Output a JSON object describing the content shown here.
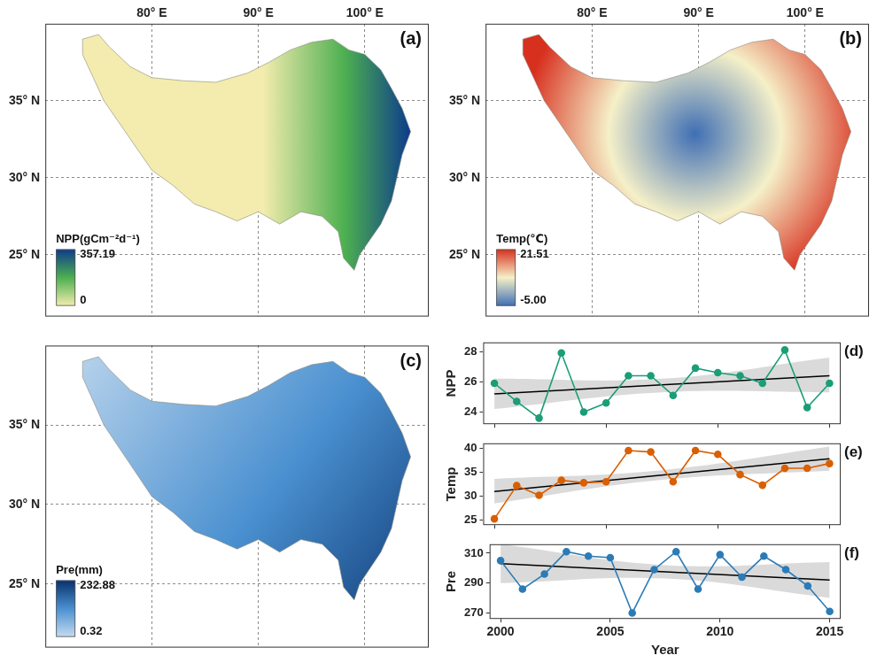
{
  "chart_data": [
    {
      "type": "map",
      "panel": "(a)",
      "xlim": [
        70,
        106
      ],
      "ylim": [
        21,
        40
      ],
      "xticks": [
        {
          "value": 80,
          "label": "80° E"
        },
        {
          "value": 90,
          "label": "90° E"
        },
        {
          "value": 100,
          "label": "100° E"
        }
      ],
      "yticks": [
        {
          "value": 25,
          "label": "25° N"
        },
        {
          "value": 30,
          "label": "30° N"
        },
        {
          "value": 35,
          "label": "35° N"
        }
      ],
      "grid": true,
      "boundary": {
        "x": [
          73.5,
          75,
          76,
          78,
          80,
          83,
          86,
          89,
          91,
          93,
          95,
          97,
          98.5,
          100,
          101.5,
          102.5,
          103.5,
          104.3,
          103.5,
          103,
          102.5,
          101.5,
          100.5,
          99.5,
          99,
          98,
          97.5,
          96,
          94,
          92,
          90,
          88,
          86,
          84,
          82,
          80,
          79,
          78,
          77,
          75.5,
          74.5,
          73.5,
          73.5
        ],
        "y": [
          39.0,
          39.3,
          38.5,
          37.2,
          36.5,
          36.3,
          36.2,
          36.8,
          37.5,
          38.3,
          38.8,
          39.0,
          38.3,
          38.0,
          37.0,
          35.8,
          34.5,
          33.0,
          31.5,
          30.0,
          28.5,
          27.0,
          26.0,
          25.0,
          24.0,
          24.8,
          26.5,
          27.5,
          27.8,
          27.0,
          27.8,
          27.2,
          27.8,
          28.3,
          29.5,
          30.5,
          31.5,
          32.5,
          33.5,
          35.0,
          36.5,
          38.0,
          39.0
        ]
      },
      "colorbar": {
        "title": "NPP(gCm⁻²d⁻¹)",
        "range": [
          0,
          357.19
        ],
        "ticks": [
          0,
          357.19
        ],
        "colors": [
          "#f3ecae",
          "#4caf50",
          "#0d3b8c"
        ]
      }
    },
    {
      "type": "map",
      "panel": "(b)",
      "xlim": [
        70,
        106
      ],
      "ylim": [
        21,
        40
      ],
      "xticks": [
        {
          "value": 80,
          "label": "80° E"
        },
        {
          "value": 90,
          "label": "90° E"
        },
        {
          "value": 100,
          "label": "100° E"
        }
      ],
      "yticks": [
        {
          "value": 25,
          "label": "25° N"
        },
        {
          "value": 30,
          "label": "30° N"
        },
        {
          "value": 35,
          "label": "35° N"
        }
      ],
      "grid": true,
      "boundary": {
        "x": [
          73.5,
          75,
          76,
          78,
          80,
          83,
          86,
          89,
          91,
          93,
          95,
          97,
          98.5,
          100,
          101.5,
          102.5,
          103.5,
          104.3,
          103.5,
          103,
          102.5,
          101.5,
          100.5,
          99.5,
          99,
          98,
          97.5,
          96,
          94,
          92,
          90,
          88,
          86,
          84,
          82,
          80,
          79,
          78,
          77,
          75.5,
          74.5,
          73.5,
          73.5
        ],
        "y": [
          39.0,
          39.3,
          38.5,
          37.2,
          36.5,
          36.3,
          36.2,
          36.8,
          37.5,
          38.3,
          38.8,
          39.0,
          38.3,
          38.0,
          37.0,
          35.8,
          34.5,
          33.0,
          31.5,
          30.0,
          28.5,
          27.0,
          26.0,
          25.0,
          24.0,
          24.8,
          26.5,
          27.5,
          27.8,
          27.0,
          27.8,
          27.2,
          27.8,
          28.3,
          29.5,
          30.5,
          31.5,
          32.5,
          33.5,
          35.0,
          36.5,
          38.0,
          39.0
        ]
      },
      "colorbar": {
        "title": "Temp(℃)",
        "range": [
          -5,
          21.51
        ],
        "ticks": [
          {
            "value": -5,
            "label": "-5.00"
          },
          21.51
        ],
        "colors": [
          "#3f6fb5",
          "#f5f0c8",
          "#d7301f"
        ]
      }
    },
    {
      "type": "map",
      "panel": "(c)",
      "xlim": [
        70,
        106
      ],
      "ylim": [
        21,
        40
      ],
      "xticks": [
        {
          "value": 80,
          "label": "80° E"
        },
        {
          "value": 90,
          "label": "90° E"
        },
        {
          "value": 100,
          "label": "100° E"
        }
      ],
      "yticks": [
        {
          "value": 25,
          "label": "25° N"
        },
        {
          "value": 30,
          "label": "30° N"
        },
        {
          "value": 35,
          "label": "35° N"
        }
      ],
      "grid": true,
      "tick_labels": "y",
      "boundary": {
        "x": [
          73.5,
          75,
          76,
          78,
          80,
          83,
          86,
          89,
          91,
          93,
          95,
          97,
          98.5,
          100,
          101.5,
          102.5,
          103.5,
          104.3,
          103.5,
          103,
          102.5,
          101.5,
          100.5,
          99.5,
          99,
          98,
          97.5,
          96,
          94,
          92,
          90,
          88,
          86,
          84,
          82,
          80,
          79,
          78,
          77,
          75.5,
          74.5,
          73.5,
          73.5
        ],
        "y": [
          39.0,
          39.3,
          38.5,
          37.2,
          36.5,
          36.3,
          36.2,
          36.8,
          37.5,
          38.3,
          38.8,
          39.0,
          38.3,
          38.0,
          37.0,
          35.8,
          34.5,
          33.0,
          31.5,
          30.0,
          28.5,
          27.0,
          26.0,
          25.0,
          24.0,
          24.8,
          26.5,
          27.5,
          27.8,
          27.0,
          27.8,
          27.2,
          27.8,
          28.3,
          29.5,
          30.5,
          31.5,
          32.5,
          33.5,
          35.0,
          36.5,
          38.0,
          39.0
        ]
      },
      "colorbar": {
        "title": "Pre(mm)",
        "range": [
          0.32,
          232.88
        ],
        "ticks": [
          0.32,
          232.88
        ],
        "colors": [
          "#c6dbef",
          "#4a90d0",
          "#08306b"
        ]
      }
    },
    {
      "type": "line",
      "panel": "(d)",
      "y_label": "NPP",
      "x": [
        2000,
        2001,
        2002,
        2003,
        2004,
        2005,
        2006,
        2007,
        2008,
        2009,
        2010,
        2011,
        2012,
        2013,
        2014,
        2015
      ],
      "values": [
        25.9,
        24.7,
        23.6,
        27.9,
        24.0,
        24.6,
        26.4,
        26.4,
        25.1,
        26.9,
        26.6,
        26.4,
        25.9,
        28.1,
        24.3,
        25.9
      ],
      "color": "#1b9e77",
      "marker": "circle",
      "trend": {
        "x": [
          2000,
          2015
        ],
        "values": [
          25.2,
          26.4
        ],
        "color": "#000000"
      },
      "band": {
        "x": [
          2000,
          2007.5,
          2015
        ],
        "lower": [
          24.2,
          25.3,
          25.3
        ],
        "upper": [
          26.2,
          26.2,
          27.6
        ]
      },
      "xlim": [
        1999.5,
        2015.5
      ],
      "xticks": [
        2000,
        2005,
        2010,
        2015
      ],
      "ylim": [
        23.2,
        28.6
      ],
      "yticks": [
        24,
        26,
        28
      ],
      "grid": false,
      "tick_labels": "y"
    },
    {
      "type": "line",
      "panel": "(e)",
      "y_label": "Temp",
      "x": [
        2000,
        2001,
        2002,
        2003,
        2004,
        2005,
        2006,
        2007,
        2008,
        2009,
        2010,
        2011,
        2012,
        2013,
        2014,
        2015
      ],
      "values": [
        25.3,
        32.2,
        30.2,
        33.3,
        32.8,
        33.0,
        39.5,
        39.2,
        33.0,
        39.5,
        38.7,
        34.5,
        32.3,
        35.8,
        35.8,
        36.8
      ],
      "color": "#d95f02",
      "marker": "circle",
      "trend": {
        "x": [
          2000,
          2015
        ],
        "values": [
          31.0,
          37.8
        ],
        "color": "#000000"
      },
      "band": {
        "x": [
          2000,
          2007.5,
          2015
        ],
        "lower": [
          28.5,
          33.4,
          35.3
        ],
        "upper": [
          33.6,
          35.4,
          40.3
        ]
      },
      "xlim": [
        1999.5,
        2015.5
      ],
      "xticks": [
        2000,
        2005,
        2010,
        2015
      ],
      "ylim": [
        24,
        41
      ],
      "yticks": [
        25,
        30,
        35,
        40
      ],
      "grid": false,
      "tick_labels": "y"
    },
    {
      "type": "line",
      "panel": "(f)",
      "y_label": "Pre",
      "x_label": "Year",
      "x": [
        2000,
        2001,
        2002,
        2003,
        2004,
        2005,
        2006,
        2007,
        2008,
        2009,
        2010,
        2011,
        2012,
        2013,
        2014,
        2015
      ],
      "values": [
        305,
        286,
        296,
        311,
        308,
        307,
        270,
        299,
        311,
        286,
        309,
        294,
        308,
        299,
        288,
        271
      ],
      "color": "#2c7bb6",
      "marker": "circle",
      "trend": {
        "x": [
          2000,
          2015
        ],
        "values": [
          303,
          292
        ],
        "color": "#000000"
      },
      "band": {
        "x": [
          2000,
          2007.5,
          2015
        ],
        "lower": [
          290,
          293,
          280
        ],
        "upper": [
          316,
          302,
          304
        ]
      },
      "xlim": [
        1999.5,
        2015.5
      ],
      "xticks": [
        2000,
        2005,
        2010,
        2015
      ],
      "ylim": [
        266,
        316
      ],
      "yticks": [
        270,
        290,
        310
      ],
      "grid": false
    }
  ]
}
